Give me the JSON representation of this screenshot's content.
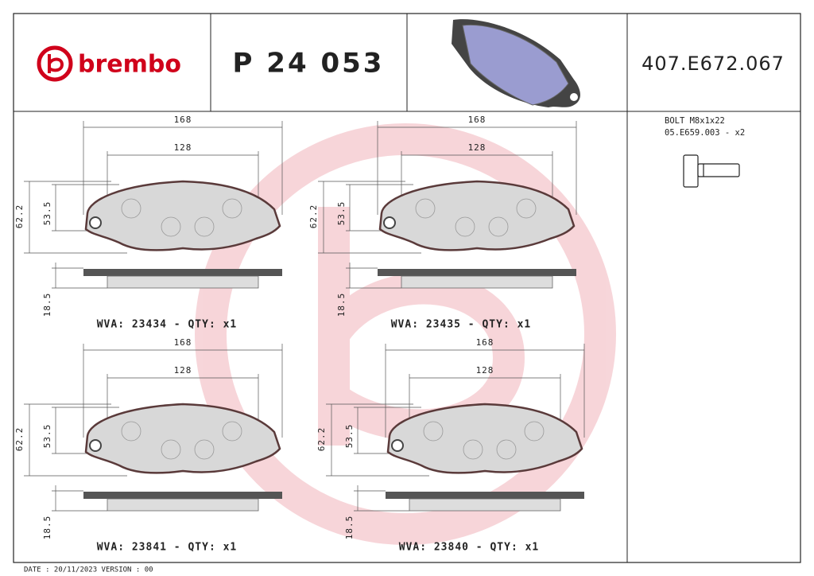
{
  "header": {
    "logo": "brembo",
    "code": "P 24 053",
    "ref": "407.E672.067"
  },
  "bolt": {
    "title": "BOLT M8x1x22",
    "ref": "05.E659.003 - x2"
  },
  "pads": [
    {
      "width": 168,
      "inner": 128,
      "height": 62.2,
      "inner_height": 53.5,
      "thickness": 18.5,
      "label": "WVA: 23434 - QTY: x1"
    },
    {
      "width": 168,
      "inner": 128,
      "height": 62.2,
      "inner_height": 53.5,
      "thickness": 18.5,
      "label": "WVA: 23435 - QTY: x1"
    },
    {
      "width": 168,
      "inner": 128,
      "height": 62.2,
      "inner_height": 53.5,
      "thickness": 18.5,
      "label": "WVA: 23841 - QTY: x1"
    },
    {
      "width": 168,
      "inner": 128,
      "height": 62.2,
      "inner_height": 53.5,
      "thickness": 18.5,
      "label": "WVA: 23840 - QTY: x1"
    }
  ],
  "footer": "DATE : 20/11/2023 VERSION : 00"
}
